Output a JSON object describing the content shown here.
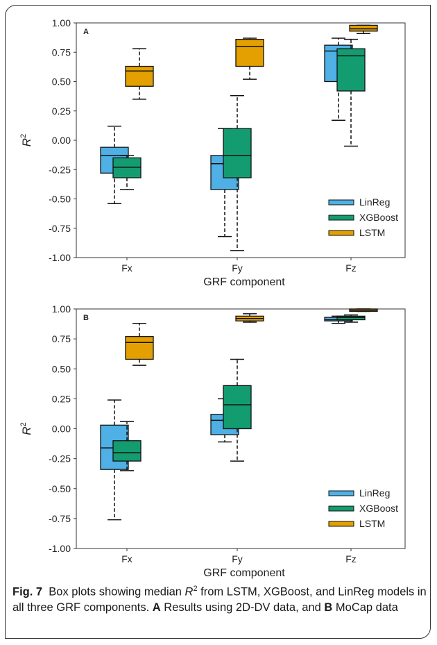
{
  "colors": {
    "LinReg": "#4fb0e6",
    "XGBoost": "#139c6f",
    "LSTM": "#e3a000",
    "panel_label": "#e8131b"
  },
  "caption": {
    "fig_label": "Fig. 7",
    "text_1": "Box plots showing median ",
    "r_symbol": "R",
    "r_exp": "2",
    "text_2": " from LSTM, XGBoost, and LinReg models in all three GRF components. ",
    "label_a": "A",
    "text_3": " Results using 2D-DV data, and ",
    "label_b": "B",
    "text_4": " MoCap data"
  },
  "chart_data": [
    {
      "type": "box",
      "panel_label": "A",
      "xlabel": "GRF component",
      "ylabel": "R",
      "ylabel_sup": "2",
      "ylim": [
        -1.0,
        1.0
      ],
      "yticks": [
        "1.00",
        "0.75",
        "0.50",
        "0.25",
        "0.00",
        "-0.25",
        "-0.50",
        "-0.75",
        "-1.00"
      ],
      "ytick_values": [
        1.0,
        0.75,
        0.5,
        0.25,
        0.0,
        -0.25,
        -0.5,
        -0.75,
        -1.0
      ],
      "categories": [
        "Fx",
        "Fy",
        "Fz"
      ],
      "legend_position": "lower right",
      "series": [
        {
          "name": "LinReg",
          "boxes": [
            {
              "min": -0.54,
              "q1": -0.28,
              "median": -0.13,
              "q3": -0.06,
              "max": 0.12
            },
            {
              "min": -0.82,
              "q1": -0.42,
              "median": -0.2,
              "q3": -0.13,
              "max": 0.1
            },
            {
              "min": 0.17,
              "q1": 0.5,
              "median": 0.76,
              "q3": 0.81,
              "max": 0.87
            }
          ]
        },
        {
          "name": "XGBoost",
          "boxes": [
            {
              "min": -0.42,
              "q1": -0.32,
              "median": -0.23,
              "q3": -0.15,
              "max": -0.13
            },
            {
              "min": -0.94,
              "q1": -0.32,
              "median": -0.13,
              "q3": 0.1,
              "max": 0.38
            },
            {
              "min": -0.05,
              "q1": 0.42,
              "median": 0.72,
              "q3": 0.78,
              "max": 0.86
            }
          ]
        },
        {
          "name": "LSTM",
          "boxes": [
            {
              "min": 0.35,
              "q1": 0.46,
              "median": 0.59,
              "q3": 0.63,
              "max": 0.78
            },
            {
              "min": 0.52,
              "q1": 0.63,
              "median": 0.8,
              "q3": 0.86,
              "max": 0.87
            },
            {
              "min": 0.91,
              "q1": 0.93,
              "median": 0.95,
              "q3": 0.98,
              "max": 0.98
            }
          ]
        }
      ]
    },
    {
      "type": "box",
      "panel_label": "B",
      "xlabel": "GRF component",
      "ylabel": "R",
      "ylabel_sup": "2",
      "ylim": [
        -1.0,
        1.0
      ],
      "yticks": [
        "1.00",
        "0.75",
        "0.50",
        "0.25",
        "0.00",
        "-0.25",
        "-0.50",
        "-0.75",
        "-1.00"
      ],
      "ytick_values": [
        1.0,
        0.75,
        0.5,
        0.25,
        0.0,
        -0.25,
        -0.5,
        -0.75,
        -1.0
      ],
      "categories": [
        "Fx",
        "Fy",
        "Fz"
      ],
      "legend_position": "lower right",
      "series": [
        {
          "name": "LinReg",
          "boxes": [
            {
              "min": -0.76,
              "q1": -0.34,
              "median": -0.16,
              "q3": 0.03,
              "max": 0.24
            },
            {
              "min": -0.11,
              "q1": -0.05,
              "median": 0.07,
              "q3": 0.12,
              "max": 0.25
            },
            {
              "min": 0.88,
              "q1": 0.9,
              "median": 0.91,
              "q3": 0.93,
              "max": 0.94
            }
          ]
        },
        {
          "name": "XGBoost",
          "boxes": [
            {
              "min": -0.35,
              "q1": -0.27,
              "median": -0.2,
              "q3": -0.1,
              "max": 0.06
            },
            {
              "min": -0.27,
              "q1": 0.0,
              "median": 0.2,
              "q3": 0.36,
              "max": 0.58
            },
            {
              "min": 0.89,
              "q1": 0.91,
              "median": 0.93,
              "q3": 0.94,
              "max": 0.95
            }
          ]
        },
        {
          "name": "LSTM",
          "boxes": [
            {
              "min": 0.53,
              "q1": 0.58,
              "median": 0.72,
              "q3": 0.77,
              "max": 0.88
            },
            {
              "min": 0.89,
              "q1": 0.9,
              "median": 0.92,
              "q3": 0.94,
              "max": 0.96
            },
            {
              "min": 0.98,
              "q1": 0.98,
              "median": 0.99,
              "q3": 1.0,
              "max": 1.0
            }
          ]
        }
      ]
    }
  ]
}
